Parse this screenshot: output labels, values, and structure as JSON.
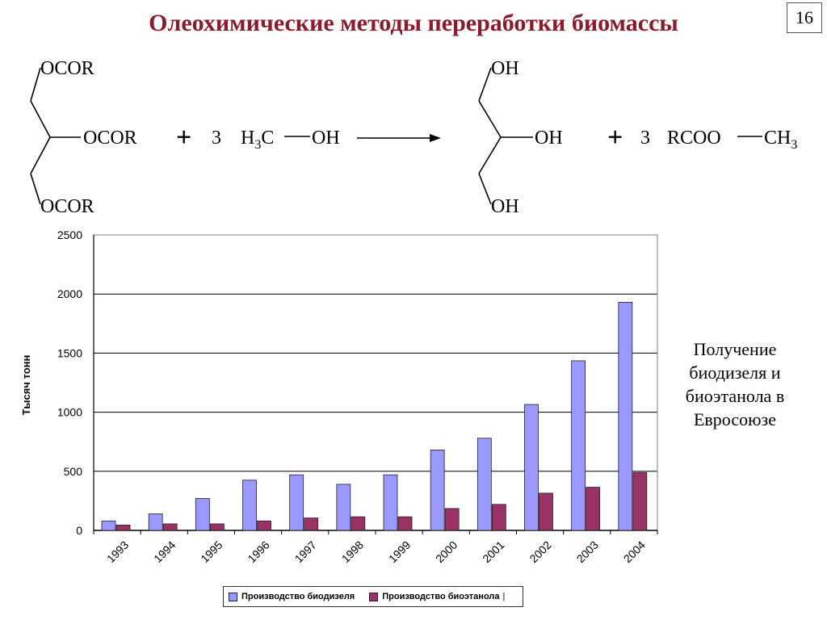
{
  "slide": {
    "title": "Олеохимические методы переработки биомассы",
    "page_number": "16"
  },
  "reaction": {
    "reactant_groups": [
      "OCOR",
      "OCOR",
      "OCOR"
    ],
    "plus": "+",
    "coef_methanol": "3",
    "methanol_h": "H",
    "methanol_sub": "3",
    "methanol_c": "C",
    "methanol_oh": "OH",
    "product_groups": [
      "OH",
      "OH",
      "OH"
    ],
    "coef_ester": "3",
    "ester_left": "RCOO",
    "ester_ch": "CH",
    "ester_sub": "3"
  },
  "caption": {
    "lines": [
      "Получение",
      "биодизеля и",
      "биоэтанола в",
      "Евросоюзе"
    ]
  },
  "chart_data": {
    "type": "bar",
    "categories": [
      "1993",
      "1994",
      "1995",
      "1996",
      "1997",
      "1998",
      "1999",
      "2000",
      "2001",
      "2002",
      "2003",
      "2004"
    ],
    "series": [
      {
        "name": "Производство биодизеля",
        "color": "#9999ff",
        "values": [
          80,
          140,
          270,
          425,
          470,
          390,
          470,
          680,
          780,
          1065,
          1435,
          1930
        ]
      },
      {
        "name": "Производство биоэтанола",
        "color": "#993366",
        "values": [
          45,
          55,
          55,
          80,
          105,
          115,
          115,
          185,
          220,
          315,
          365,
          490
        ]
      }
    ],
    "ylabel": "Тысяч тонн",
    "ylim": [
      0,
      2500
    ],
    "yticks": [
      0,
      500,
      1000,
      1500,
      2000,
      2500
    ],
    "grid": true,
    "legend_position": "bottom",
    "legend_tail": "|"
  }
}
